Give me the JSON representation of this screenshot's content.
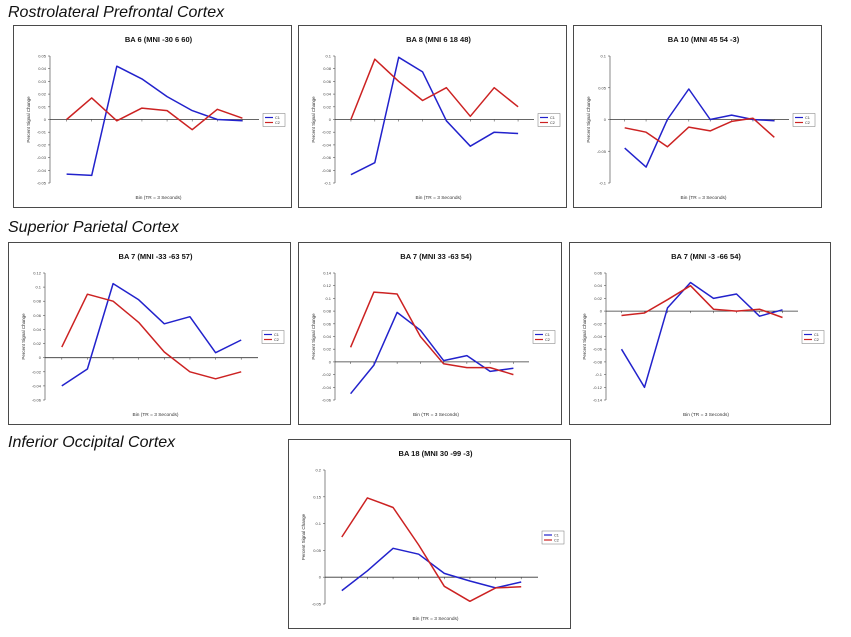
{
  "sections": [
    {
      "title": "Rostrolateral Prefrontal Cortex"
    },
    {
      "title": "Superior Parietal Cortex"
    },
    {
      "title": "Inferior Occipital Cortex"
    }
  ],
  "chart_data": [
    {
      "type": "line",
      "title": "BA 6 (MNI -30 6 60)",
      "xlabel": "Bin (TR = 3 Seconds)",
      "ylabel": "Percent Signal Change",
      "ylim": [
        -0.05,
        0.05
      ],
      "yticks": [
        -0.05,
        -0.04,
        -0.03,
        -0.02,
        -0.01,
        0,
        0.01,
        0.02,
        0.03,
        0.04,
        0.05
      ],
      "ytick_labels": [
        "-0.05",
        "-0.04",
        "-0.03",
        "-0.02",
        "-0.01",
        "0",
        "0.01",
        "0.02",
        "0.03",
        "0.04",
        "0.05"
      ],
      "x": [
        1,
        2,
        3,
        4,
        5,
        6,
        7,
        8
      ],
      "series": [
        {
          "name": "C1",
          "color": "#2222cc",
          "values": [
            -0.043,
            -0.044,
            0.042,
            0.032,
            0.018,
            0.007,
            0.0,
            -0.001
          ]
        },
        {
          "name": "C2",
          "color": "#cc2222",
          "values": [
            0.0,
            0.017,
            -0.001,
            0.009,
            0.007,
            -0.008,
            0.008,
            0.001
          ]
        }
      ]
    },
    {
      "type": "line",
      "title": "BA 8 (MNI 6 18 48)",
      "xlabel": "Bin (TR = 3 Seconds)",
      "ylabel": "Percent Signal Change",
      "ylim": [
        -0.1,
        0.1
      ],
      "yticks": [
        -0.1,
        -0.08,
        -0.06,
        -0.04,
        -0.02,
        0,
        0.02,
        0.04,
        0.06,
        0.08,
        0.1
      ],
      "ytick_labels": [
        "-0.1",
        "-0.08",
        "-0.06",
        "-0.04",
        "-0.02",
        "0",
        "0.02",
        "0.04",
        "0.06",
        "0.08",
        "0.1"
      ],
      "x": [
        1,
        2,
        3,
        4,
        5,
        6,
        7,
        8
      ],
      "series": [
        {
          "name": "C1",
          "color": "#2222cc",
          "values": [
            -0.087,
            -0.068,
            0.098,
            0.075,
            -0.002,
            -0.042,
            -0.02,
            -0.022
          ]
        },
        {
          "name": "C2",
          "color": "#cc2222",
          "values": [
            0.0,
            0.095,
            0.06,
            0.03,
            0.05,
            0.005,
            0.05,
            0.02
          ]
        }
      ]
    },
    {
      "type": "line",
      "title": "BA 10 (MNI 45 54 -3)",
      "xlabel": "Bin (TR = 3 Seconds)",
      "ylabel": "Percent Signal Change",
      "ylim": [
        -0.1,
        0.1
      ],
      "yticks": [
        -0.1,
        -0.05,
        0,
        0.05,
        0.1
      ],
      "ytick_labels": [
        "-0.1",
        "-0.05",
        "0",
        "0.05",
        "0.1"
      ],
      "x": [
        1,
        2,
        3,
        4,
        5,
        6,
        7,
        8
      ],
      "series": [
        {
          "name": "C1",
          "color": "#2222cc",
          "values": [
            -0.045,
            -0.075,
            0.0,
            0.048,
            0.0,
            0.007,
            0.0,
            -0.002
          ]
        },
        {
          "name": "C2",
          "color": "#cc2222",
          "values": [
            -0.013,
            -0.02,
            -0.043,
            -0.012,
            -0.018,
            -0.003,
            0.002,
            -0.028
          ]
        }
      ]
    },
    {
      "type": "line",
      "title": "BA 7 (MNI -33 -63 57)",
      "xlabel": "Bin (TR = 3 Seconds)",
      "ylabel": "Percent Signal Change",
      "ylim": [
        -0.06,
        0.12
      ],
      "yticks": [
        -0.06,
        -0.04,
        -0.02,
        0,
        0.02,
        0.04,
        0.06,
        0.08,
        0.1,
        0.12
      ],
      "ytick_labels": [
        "-0.06",
        "-0.04",
        "-0.02",
        "0",
        "0.02",
        "0.04",
        "0.06",
        "0.08",
        "0.1",
        "0.12"
      ],
      "x": [
        1,
        2,
        3,
        4,
        5,
        6,
        7,
        8
      ],
      "series": [
        {
          "name": "C1",
          "color": "#2222cc",
          "values": [
            -0.04,
            -0.016,
            0.105,
            0.082,
            0.048,
            0.058,
            0.007,
            0.025
          ]
        },
        {
          "name": "C2",
          "color": "#cc2222",
          "values": [
            0.015,
            0.09,
            0.08,
            0.05,
            0.008,
            -0.02,
            -0.03,
            -0.02
          ]
        }
      ]
    },
    {
      "type": "line",
      "title": "BA 7 (MNI 33 -63 54)",
      "xlabel": "Bin (TR = 3 Seconds)",
      "ylabel": "Percent Signal Change",
      "ylim": [
        -0.06,
        0.14
      ],
      "yticks": [
        -0.06,
        -0.04,
        -0.02,
        0,
        0.02,
        0.04,
        0.06,
        0.08,
        0.1,
        0.12,
        0.14
      ],
      "ytick_labels": [
        "-0.06",
        "-0.04",
        "-0.02",
        "0",
        "0.02",
        "0.04",
        "0.06",
        "0.08",
        "0.1",
        "0.12",
        "0.14"
      ],
      "x": [
        1,
        2,
        3,
        4,
        5,
        6,
        7,
        8
      ],
      "series": [
        {
          "name": "C1",
          "color": "#2222cc",
          "values": [
            -0.05,
            -0.005,
            0.078,
            0.05,
            0.002,
            0.01,
            -0.015,
            -0.01
          ]
        },
        {
          "name": "C2",
          "color": "#cc2222",
          "values": [
            0.023,
            0.11,
            0.107,
            0.04,
            -0.003,
            -0.009,
            -0.009,
            -0.02
          ]
        }
      ]
    },
    {
      "type": "line",
      "title": "BA 7 (MNI -3 -66 54)",
      "xlabel": "Bin (TR = 3 Seconds)",
      "ylabel": "Percent Signal Change",
      "ylim": [
        -0.14,
        0.06
      ],
      "yticks": [
        -0.14,
        -0.12,
        -0.1,
        -0.08,
        -0.06,
        -0.04,
        -0.02,
        0,
        0.02,
        0.04,
        0.06
      ],
      "ytick_labels": [
        "-0.14",
        "-0.12",
        "-0.1",
        "-0.08",
        "-0.06",
        "-0.04",
        "-0.02",
        "0",
        "0.02",
        "0.04",
        "0.06"
      ],
      "x": [
        1,
        2,
        3,
        4,
        5,
        6,
        7,
        8
      ],
      "series": [
        {
          "name": "C1",
          "color": "#2222cc",
          "values": [
            -0.06,
            -0.12,
            0.005,
            0.045,
            0.02,
            0.027,
            -0.008,
            0.002
          ]
        },
        {
          "name": "C2",
          "color": "#cc2222",
          "values": [
            -0.007,
            -0.003,
            0.018,
            0.04,
            0.003,
            0.0,
            0.003,
            -0.01
          ]
        }
      ]
    },
    {
      "type": "line",
      "title": "BA 18 (MNI 30 -99 -3)",
      "xlabel": "Bin (TR = 3 Seconds)",
      "ylabel": "Percent Signal Change",
      "ylim": [
        -0.05,
        0.2
      ],
      "yticks": [
        -0.05,
        0,
        0.05,
        0.1,
        0.15,
        0.2
      ],
      "ytick_labels": [
        "-0.05",
        "0",
        "0.05",
        "0.1",
        "0.15",
        "0.2"
      ],
      "x": [
        1,
        2,
        3,
        4,
        5,
        6,
        7,
        8
      ],
      "series": [
        {
          "name": "C1",
          "color": "#2222cc",
          "values": [
            -0.025,
            0.012,
            0.054,
            0.043,
            0.007,
            -0.007,
            -0.02,
            -0.009
          ]
        },
        {
          "name": "C2",
          "color": "#cc2222",
          "values": [
            0.075,
            0.148,
            0.13,
            0.06,
            -0.017,
            -0.045,
            -0.02,
            -0.018
          ]
        }
      ]
    }
  ]
}
